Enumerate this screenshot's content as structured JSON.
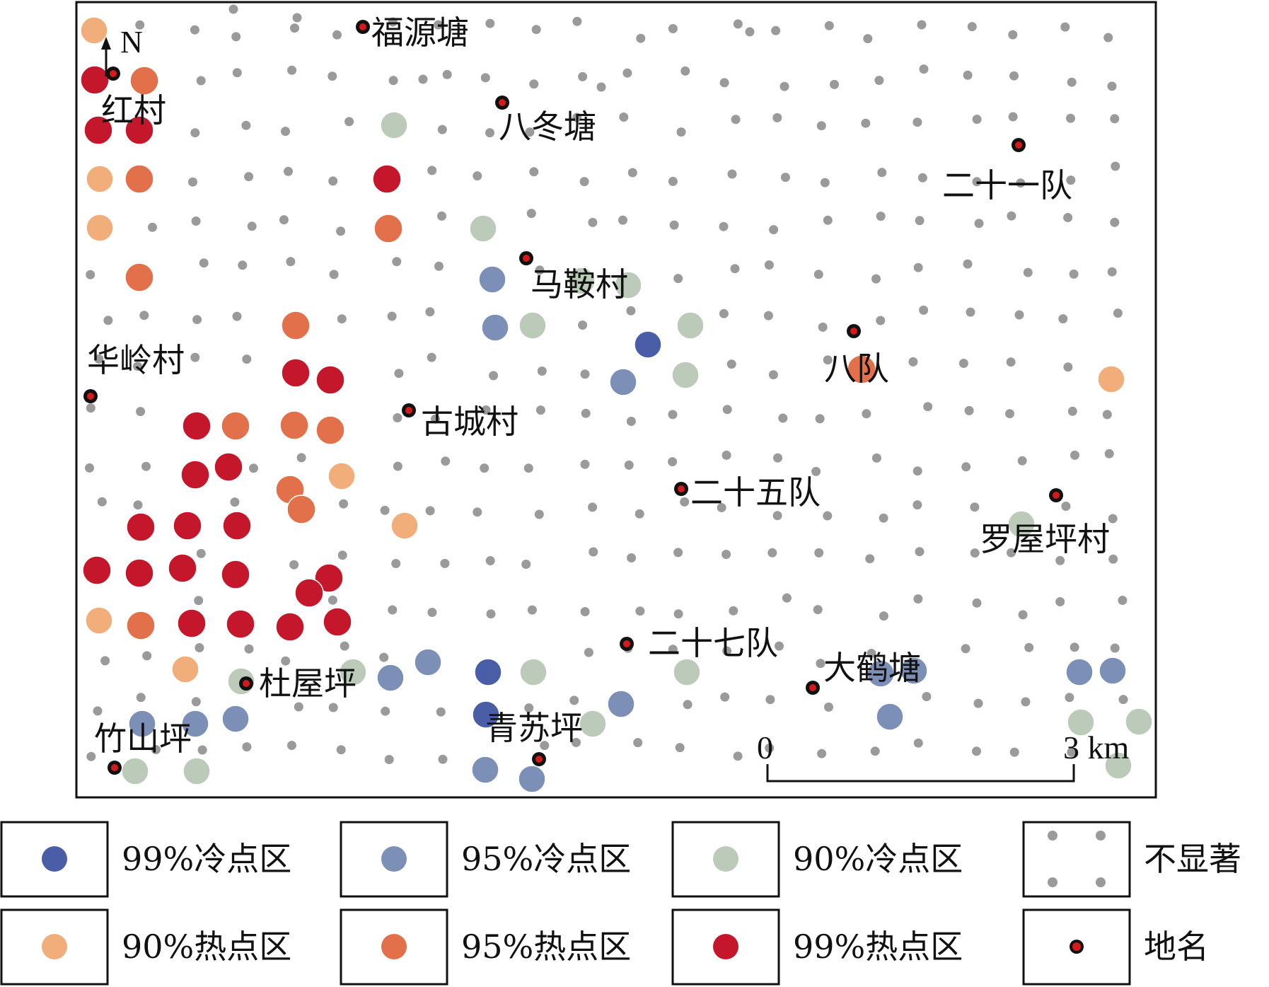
{
  "colors": {
    "cold99": "#4a5ea8",
    "cold95": "#7c8fb6",
    "cold90": "#bccab9",
    "ns": "#9a9a9a",
    "hot90": "#f1ae7a",
    "hot95": "#e2704a",
    "hot99": "#c5172b",
    "place_outer": "#111111",
    "place_inner": "#d41a1a"
  },
  "north_label": "N",
  "scale": {
    "start": "0",
    "end": "3 km"
  },
  "places": [
    {
      "name": "福源塘"
    },
    {
      "name": "红村"
    },
    {
      "name": "八冬塘"
    },
    {
      "name": "二十一队"
    },
    {
      "name": "马鞍村"
    },
    {
      "name": "华岭村"
    },
    {
      "name": "八队"
    },
    {
      "name": "古城村"
    },
    {
      "name": "二十五队"
    },
    {
      "name": "罗屋坪村"
    },
    {
      "name": "二十七队"
    },
    {
      "name": "大鹤塘"
    },
    {
      "name": "杜屋坪"
    },
    {
      "name": "竹山坪"
    },
    {
      "name": "青苏坪"
    }
  ],
  "legend": [
    {
      "key": "cold99",
      "label": "99%冷点区"
    },
    {
      "key": "cold95",
      "label": "95%冷点区"
    },
    {
      "key": "cold90",
      "label": "90%冷点区"
    },
    {
      "key": "ns",
      "label": "不显著"
    },
    {
      "key": "hot90",
      "label": "90%热点区"
    },
    {
      "key": "hot95",
      "label": "95%热点区"
    },
    {
      "key": "hot99",
      "label": "99%热点区"
    },
    {
      "key": "place",
      "label": "地名"
    }
  ]
}
